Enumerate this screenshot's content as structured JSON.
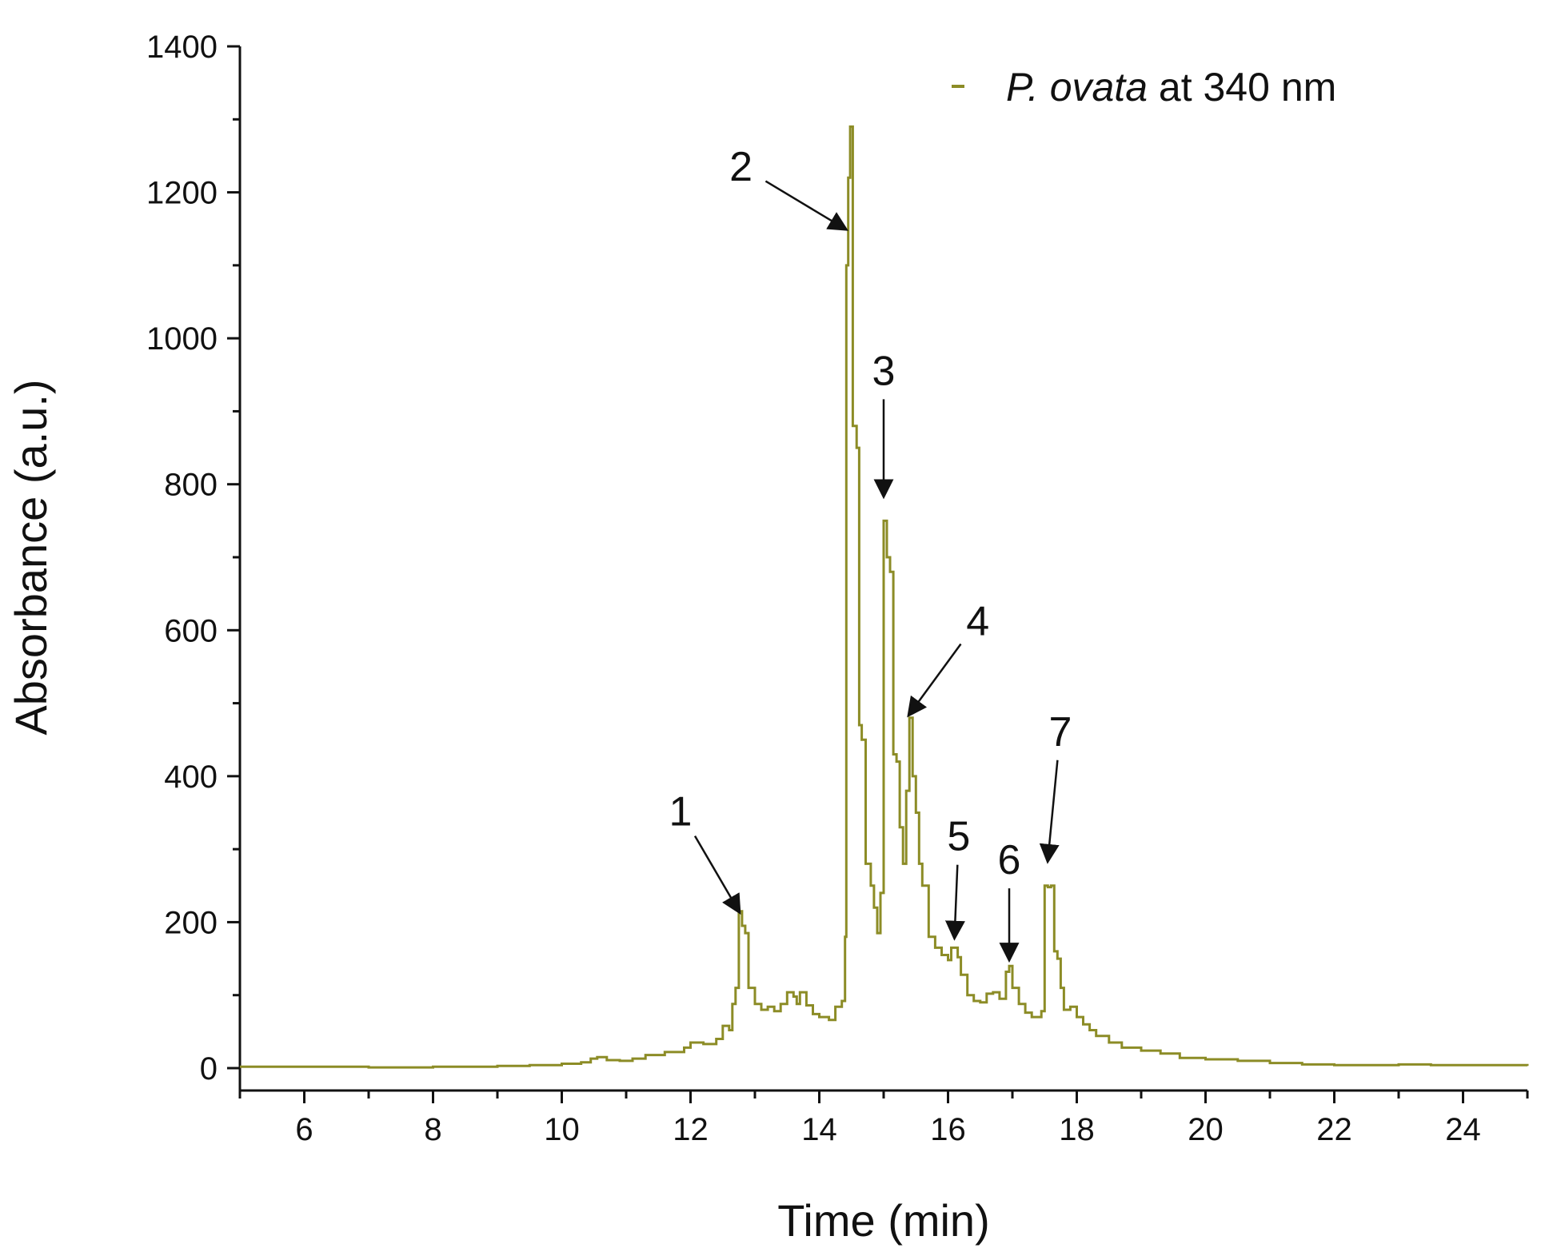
{
  "chart_data": {
    "type": "line",
    "title": "",
    "xlabel": "Time (min)",
    "ylabel": "Absorbance (a.u.)",
    "xlim": [
      5,
      25
    ],
    "ylim": [
      0,
      1400
    ],
    "xticks": [
      6,
      8,
      10,
      12,
      14,
      16,
      18,
      20,
      22,
      24
    ],
    "yticks": [
      0,
      200,
      400,
      600,
      800,
      1000,
      1200,
      1400
    ],
    "grid": false,
    "legend": {
      "position": "top-right",
      "prefix": "",
      "italic": "P. ovata",
      "suffix": " at 340 nm"
    },
    "series": [
      {
        "name": "P. ovata at 340 nm",
        "color": "#8c8c26",
        "points": [
          [
            5.0,
            2
          ],
          [
            6.0,
            2
          ],
          [
            7.0,
            1
          ],
          [
            8.0,
            2
          ],
          [
            9.0,
            3
          ],
          [
            9.5,
            4
          ],
          [
            10.0,
            6
          ],
          [
            10.3,
            8
          ],
          [
            10.45,
            13
          ],
          [
            10.55,
            15
          ],
          [
            10.7,
            11
          ],
          [
            10.9,
            10
          ],
          [
            11.1,
            13
          ],
          [
            11.3,
            18
          ],
          [
            11.6,
            22
          ],
          [
            11.9,
            28
          ],
          [
            12.0,
            35
          ],
          [
            12.2,
            33
          ],
          [
            12.4,
            40
          ],
          [
            12.5,
            58
          ],
          [
            12.6,
            52
          ],
          [
            12.65,
            88
          ],
          [
            12.7,
            110
          ],
          [
            12.75,
            215
          ],
          [
            12.8,
            195
          ],
          [
            12.85,
            185
          ],
          [
            12.9,
            110
          ],
          [
            13.0,
            88
          ],
          [
            13.1,
            80
          ],
          [
            13.2,
            84
          ],
          [
            13.3,
            78
          ],
          [
            13.4,
            88
          ],
          [
            13.5,
            104
          ],
          [
            13.6,
            98
          ],
          [
            13.65,
            88
          ],
          [
            13.7,
            104
          ],
          [
            13.8,
            86
          ],
          [
            13.9,
            74
          ],
          [
            14.0,
            70
          ],
          [
            14.15,
            66
          ],
          [
            14.25,
            84
          ],
          [
            14.35,
            92
          ],
          [
            14.4,
            180
          ],
          [
            14.42,
            1100
          ],
          [
            14.45,
            1220
          ],
          [
            14.48,
            1290
          ],
          [
            14.52,
            880
          ],
          [
            14.58,
            850
          ],
          [
            14.62,
            470
          ],
          [
            14.66,
            450
          ],
          [
            14.72,
            280
          ],
          [
            14.8,
            250
          ],
          [
            14.85,
            220
          ],
          [
            14.9,
            185
          ],
          [
            14.95,
            240
          ],
          [
            15.0,
            750
          ],
          [
            15.05,
            700
          ],
          [
            15.1,
            680
          ],
          [
            15.15,
            430
          ],
          [
            15.2,
            420
          ],
          [
            15.25,
            330
          ],
          [
            15.3,
            280
          ],
          [
            15.35,
            380
          ],
          [
            15.4,
            480
          ],
          [
            15.45,
            400
          ],
          [
            15.5,
            350
          ],
          [
            15.55,
            280
          ],
          [
            15.6,
            250
          ],
          [
            15.7,
            180
          ],
          [
            15.8,
            165
          ],
          [
            15.9,
            155
          ],
          [
            16.0,
            148
          ],
          [
            16.05,
            165
          ],
          [
            16.15,
            152
          ],
          [
            16.2,
            128
          ],
          [
            16.3,
            100
          ],
          [
            16.4,
            92
          ],
          [
            16.5,
            90
          ],
          [
            16.6,
            102
          ],
          [
            16.7,
            104
          ],
          [
            16.8,
            95
          ],
          [
            16.9,
            132
          ],
          [
            16.95,
            140
          ],
          [
            17.0,
            110
          ],
          [
            17.1,
            88
          ],
          [
            17.2,
            76
          ],
          [
            17.3,
            70
          ],
          [
            17.45,
            78
          ],
          [
            17.5,
            250
          ],
          [
            17.55,
            248
          ],
          [
            17.6,
            250
          ],
          [
            17.65,
            160
          ],
          [
            17.7,
            150
          ],
          [
            17.75,
            110
          ],
          [
            17.8,
            80
          ],
          [
            17.9,
            84
          ],
          [
            18.0,
            70
          ],
          [
            18.1,
            60
          ],
          [
            18.2,
            52
          ],
          [
            18.3,
            44
          ],
          [
            18.5,
            35
          ],
          [
            18.7,
            28
          ],
          [
            19.0,
            24
          ],
          [
            19.3,
            20
          ],
          [
            19.6,
            14
          ],
          [
            20.0,
            12
          ],
          [
            20.5,
            10
          ],
          [
            21.0,
            7
          ],
          [
            21.5,
            5
          ],
          [
            22.0,
            4
          ],
          [
            22.5,
            4
          ],
          [
            23.0,
            5
          ],
          [
            23.5,
            4
          ],
          [
            24.0,
            4
          ],
          [
            25.0,
            3
          ]
        ]
      }
    ],
    "annotations": [
      {
        "label": "1",
        "x": 12.75,
        "y": 215
      },
      {
        "label": "2",
        "x": 14.4,
        "y": 1150
      },
      {
        "label": "3",
        "x": 15.0,
        "y": 785
      },
      {
        "label": "4",
        "x": 15.4,
        "y": 485
      },
      {
        "label": "5",
        "x": 16.1,
        "y": 180
      },
      {
        "label": "6",
        "x": 16.95,
        "y": 150
      },
      {
        "label": "7",
        "x": 17.55,
        "y": 285
      }
    ]
  }
}
